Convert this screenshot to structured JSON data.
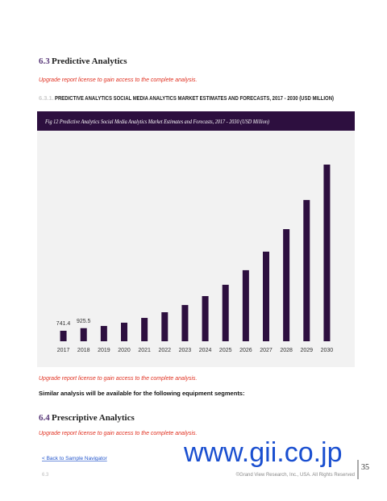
{
  "section": {
    "number": "6.3",
    "title": "Predictive Analytics"
  },
  "notices": [
    "Upgrade report license to gain access to the complete analysis.",
    "Upgrade report license to gain access to the complete analysis.",
    "Upgrade report license to gain access to the complete analysis."
  ],
  "subsection": {
    "number": "6.3.1.",
    "title": "PREDICTIVE ANALYTICS SOCIAL MEDIA ANALYTICS MARKET ESTIMATES AND FORECASTS, 2017 - 2030 (USD MILLION)"
  },
  "chart_data": {
    "type": "bar",
    "title": "Fig 12 Predictive Analytics Social Media Analytics Market Estimates and Forecasts, 2017 - 2030 (USD Million)",
    "categories": [
      "2017",
      "2018",
      "2019",
      "2020",
      "2021",
      "2022",
      "2023",
      "2024",
      "2025",
      "2026",
      "2027",
      "2028",
      "2029",
      "2030"
    ],
    "values": [
      741.4,
      925.5,
      1080,
      1310,
      1650,
      2050,
      2560,
      3190,
      3990,
      5020,
      6330,
      7920,
      9980,
      12480
    ],
    "value_labels": [
      "741.4",
      "925.5",
      null,
      null,
      null,
      null,
      null,
      null,
      null,
      null,
      null,
      null,
      null,
      null
    ],
    "color": "#2d0f3f"
  },
  "similar_note": "Similar analysis will be available for the following equipment segments:",
  "next_section": {
    "number": "6.4",
    "title": "Prescriptive Analytics"
  },
  "footer": {
    "back_link": "< Back to Sample Navigator",
    "watermark": "www.gii.co.jp",
    "copyright": "©Grand View Research, Inc., USA. All Rights Reserved",
    "page_number": "35",
    "section_ref": "6.3"
  }
}
